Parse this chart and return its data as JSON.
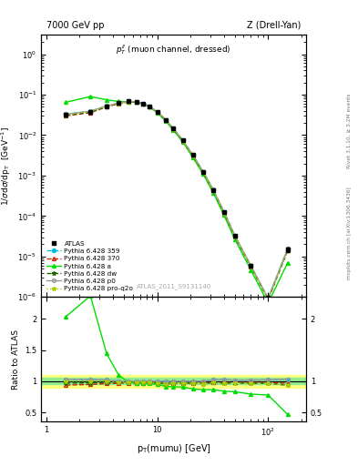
{
  "title_left": "7000 GeV pp",
  "title_right": "Z (Drell-Yan)",
  "ylabel_main": "1/σdσ/dp_T  [GeV⁻¹]",
  "ylabel_ratio": "Ratio to ATLAS",
  "xlabel": "p_T(mumu) [GeV]",
  "annotation_main": "$p_T^{ll}$ (muon channel, dressed)",
  "annotation_id": "ATLAS_2011_S9131140",
  "right_label_top": "Rivet 3.1.10, ≥ 3.2M events",
  "right_label_bot": "mcplots.cern.ch [arXiv:1306.3436]",
  "pt": [
    1.5,
    2.5,
    3.5,
    4.5,
    5.5,
    6.5,
    7.5,
    8.5,
    10.0,
    12.0,
    14.0,
    17.0,
    21.0,
    26.0,
    32.0,
    40.0,
    50.0,
    70.0,
    100.0,
    150.0
  ],
  "atlas_y": [
    0.032,
    0.038,
    0.052,
    0.062,
    0.068,
    0.067,
    0.061,
    0.052,
    0.038,
    0.024,
    0.0145,
    0.0075,
    0.0032,
    0.00125,
    0.00044,
    0.000125,
    3.25e-05,
    5.8e-06,
    9e-07,
    1.5e-05
  ],
  "atlas_err": [
    0.002,
    0.002,
    0.002,
    0.002,
    0.002,
    0.002,
    0.002,
    0.002,
    0.002,
    0.001,
    0.0007,
    0.0004,
    0.00015,
    6e-05,
    2e-05,
    8e-06,
    2.5e-06,
    6e-07,
    1.5e-07,
    2e-06
  ],
  "py359_y": [
    0.033,
    0.039,
    0.053,
    0.062,
    0.068,
    0.067,
    0.061,
    0.052,
    0.038,
    0.024,
    0.0145,
    0.0075,
    0.0032,
    0.00125,
    0.00045,
    0.000128,
    3.3e-05,
    5.9e-06,
    9.2e-07,
    1.55e-05
  ],
  "py370_y": [
    0.03,
    0.036,
    0.05,
    0.06,
    0.066,
    0.065,
    0.059,
    0.051,
    0.037,
    0.023,
    0.014,
    0.0073,
    0.0031,
    0.00122,
    0.00043,
    0.000122,
    3.18e-05,
    5.7e-06,
    8.8e-07,
    1.45e-05
  ],
  "pya_y": [
    0.065,
    0.09,
    0.075,
    0.068,
    0.067,
    0.065,
    0.059,
    0.05,
    0.036,
    0.022,
    0.0132,
    0.0068,
    0.0028,
    0.00108,
    0.00038,
    0.000105,
    2.7e-05,
    4.6e-06,
    7e-07,
    7e-06
  ],
  "pydw_y": [
    0.031,
    0.037,
    0.051,
    0.061,
    0.067,
    0.066,
    0.06,
    0.051,
    0.037,
    0.023,
    0.014,
    0.0073,
    0.0031,
    0.0012,
    0.00043,
    0.000121,
    3.15e-05,
    5.6e-06,
    8.7e-07,
    1.4e-05
  ],
  "pyp0_y": [
    0.033,
    0.039,
    0.053,
    0.062,
    0.068,
    0.067,
    0.061,
    0.052,
    0.038,
    0.024,
    0.0145,
    0.0075,
    0.0032,
    0.00125,
    0.00045,
    0.000128,
    3.3e-05,
    5.9e-06,
    9.2e-07,
    1.55e-05
  ],
  "pypq2o_y": [
    0.032,
    0.038,
    0.052,
    0.061,
    0.067,
    0.066,
    0.06,
    0.051,
    0.037,
    0.023,
    0.014,
    0.0073,
    0.0031,
    0.0012,
    0.00043,
    0.000121,
    3.15e-05,
    5.6e-06,
    8.7e-07,
    1.4e-05
  ],
  "color_atlas": "#000000",
  "color_359": "#00bbdd",
  "color_370": "#cc2200",
  "color_a": "#00dd00",
  "color_dw": "#226600",
  "color_p0": "#999999",
  "color_pq2o": "#aacc00",
  "band_inner": 0.05,
  "band_outer": 0.1,
  "xlim": [
    0.9,
    220
  ],
  "ylim_main": [
    1e-06,
    3.0
  ],
  "ylim_ratio": [
    0.35,
    2.35
  ]
}
